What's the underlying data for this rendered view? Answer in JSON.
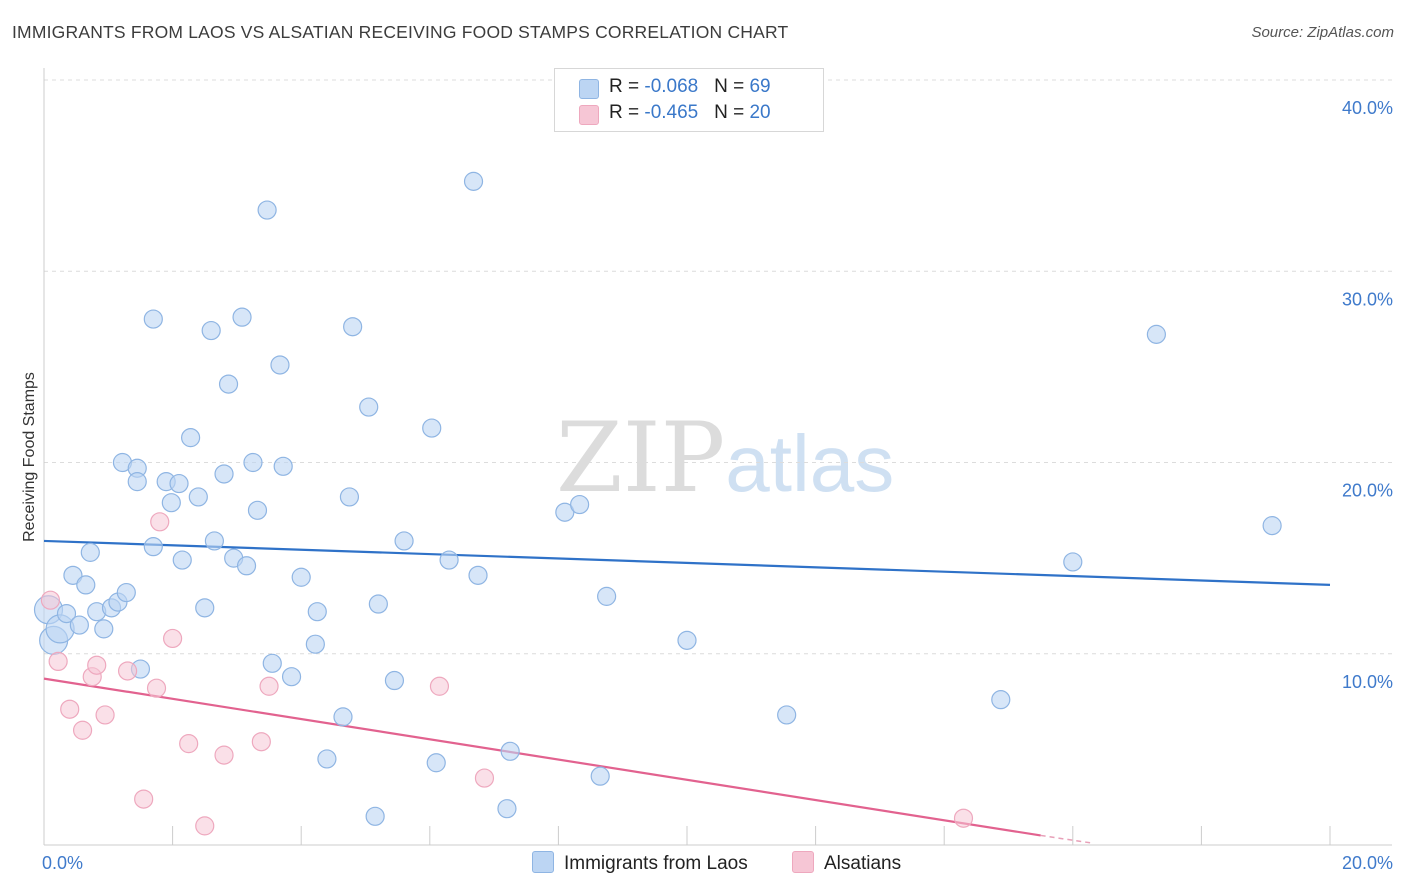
{
  "title": "IMMIGRANTS FROM LAOS VS ALSATIAN RECEIVING FOOD STAMPS CORRELATION CHART",
  "source": "Source: ZipAtlas.com",
  "watermark": {
    "zip": "ZIP",
    "atlas": "atlas"
  },
  "legend": {
    "rows": [
      {
        "r_label": "R = ",
        "r_value": "-0.068",
        "n_label": "N = ",
        "n_value": "69"
      },
      {
        "r_label": "R = ",
        "r_value": "-0.465",
        "n_label": "N = ",
        "n_value": "20"
      }
    ]
  },
  "colors": {
    "blue_fill": "#bcd5f3",
    "blue_stroke": "#8fb5e3",
    "blue_line": "#2f72c8",
    "pink_fill": "#f6c6d5",
    "pink_stroke": "#eea8be",
    "pink_line": "#e2628f",
    "tick_text": "#3f7acb",
    "grid": "#dcdcdc"
  },
  "chart_data": {
    "type": "scatter",
    "title": "IMMIGRANTS FROM LAOS VS ALSATIAN RECEIVING FOOD STAMPS CORRELATION CHART",
    "xlabel": "",
    "ylabel": "Receiving Food Stamps",
    "xlim": [
      0,
      20
    ],
    "ylim": [
      0,
      40
    ],
    "x_tick_labels": [
      "0.0%",
      "20.0%"
    ],
    "y_ticks": [
      10,
      20,
      30,
      40
    ],
    "y_tick_labels": [
      "10.0%",
      "20.0%",
      "30.0%",
      "40.0%"
    ],
    "grid": true,
    "series": [
      {
        "name": "Immigrants from Laos",
        "color": "#bcd5f3",
        "trend": {
          "x": [
            0,
            20
          ],
          "y": [
            15.9,
            13.6
          ]
        },
        "points": [
          [
            0.07,
            12.3
          ],
          [
            0.15,
            10.7
          ],
          [
            0.25,
            11.3
          ],
          [
            0.35,
            12.1
          ],
          [
            0.45,
            14.1
          ],
          [
            0.55,
            11.5
          ],
          [
            0.65,
            13.6
          ],
          [
            0.72,
            15.3
          ],
          [
            0.82,
            12.2
          ],
          [
            0.93,
            11.3
          ],
          [
            1.05,
            12.4
          ],
          [
            1.15,
            12.7
          ],
          [
            1.28,
            13.2
          ],
          [
            1.5,
            9.2
          ],
          [
            1.22,
            20.0
          ],
          [
            1.45,
            19.7
          ],
          [
            1.45,
            19.0
          ],
          [
            1.7,
            15.6
          ],
          [
            1.9,
            19.0
          ],
          [
            1.98,
            17.9
          ],
          [
            2.1,
            18.9
          ],
          [
            2.15,
            14.9
          ],
          [
            2.28,
            21.3
          ],
          [
            2.4,
            18.2
          ],
          [
            2.5,
            12.4
          ],
          [
            2.65,
            15.9
          ],
          [
            2.8,
            19.4
          ],
          [
            2.87,
            24.1
          ],
          [
            2.95,
            15.0
          ],
          [
            3.15,
            14.6
          ],
          [
            3.25,
            20.0
          ],
          [
            3.32,
            17.5
          ],
          [
            3.47,
            33.2
          ],
          [
            3.55,
            9.5
          ],
          [
            3.67,
            25.1
          ],
          [
            3.72,
            19.8
          ],
          [
            3.85,
            8.8
          ],
          [
            4.0,
            14.0
          ],
          [
            4.22,
            10.5
          ],
          [
            4.25,
            12.2
          ],
          [
            4.4,
            4.5
          ],
          [
            4.65,
            6.7
          ],
          [
            4.75,
            18.2
          ],
          [
            4.8,
            27.1
          ],
          [
            5.05,
            22.9
          ],
          [
            5.15,
            1.5
          ],
          [
            5.2,
            12.6
          ],
          [
            5.45,
            8.6
          ],
          [
            5.6,
            15.9
          ],
          [
            6.03,
            21.8
          ],
          [
            6.1,
            4.3
          ],
          [
            6.3,
            14.9
          ],
          [
            6.68,
            34.7
          ],
          [
            6.75,
            14.1
          ],
          [
            7.2,
            1.9
          ],
          [
            7.25,
            4.9
          ],
          [
            8.1,
            17.4
          ],
          [
            8.33,
            17.8
          ],
          [
            8.65,
            3.6
          ],
          [
            8.75,
            13.0
          ],
          [
            2.6,
            26.9
          ],
          [
            3.08,
            27.6
          ],
          [
            1.7,
            27.5
          ],
          [
            10.0,
            10.7
          ],
          [
            11.55,
            6.8
          ],
          [
            14.88,
            7.6
          ],
          [
            16.0,
            14.8
          ],
          [
            17.3,
            26.7
          ],
          [
            19.1,
            16.7
          ]
        ]
      },
      {
        "name": "Alsatians",
        "color": "#f6c6d5",
        "trend": {
          "x": [
            0,
            15.5
          ],
          "y": [
            8.7,
            0.5
          ]
        },
        "trend_dashed": {
          "x": [
            15.5,
            16.3
          ],
          "y": [
            0.5,
            0.1
          ]
        },
        "points": [
          [
            0.1,
            12.8
          ],
          [
            0.22,
            9.6
          ],
          [
            0.4,
            7.1
          ],
          [
            0.6,
            6.0
          ],
          [
            0.75,
            8.8
          ],
          [
            0.82,
            9.4
          ],
          [
            0.95,
            6.8
          ],
          [
            1.3,
            9.1
          ],
          [
            1.55,
            2.4
          ],
          [
            1.75,
            8.2
          ],
          [
            1.8,
            16.9
          ],
          [
            2.0,
            10.8
          ],
          [
            2.25,
            5.3
          ],
          [
            2.5,
            1.0
          ],
          [
            2.8,
            4.7
          ],
          [
            3.38,
            5.4
          ],
          [
            3.5,
            8.3
          ],
          [
            6.15,
            8.3
          ],
          [
            6.85,
            3.5
          ],
          [
            14.3,
            1.4
          ]
        ]
      }
    ]
  },
  "axis": {
    "x_min_label": "0.0%",
    "x_max_label": "20.0%",
    "ylabel": "Receiving Food Stamps"
  },
  "bottom_legend": {
    "items": [
      {
        "label": "Immigrants from Laos"
      },
      {
        "label": "Alsatians"
      }
    ]
  }
}
